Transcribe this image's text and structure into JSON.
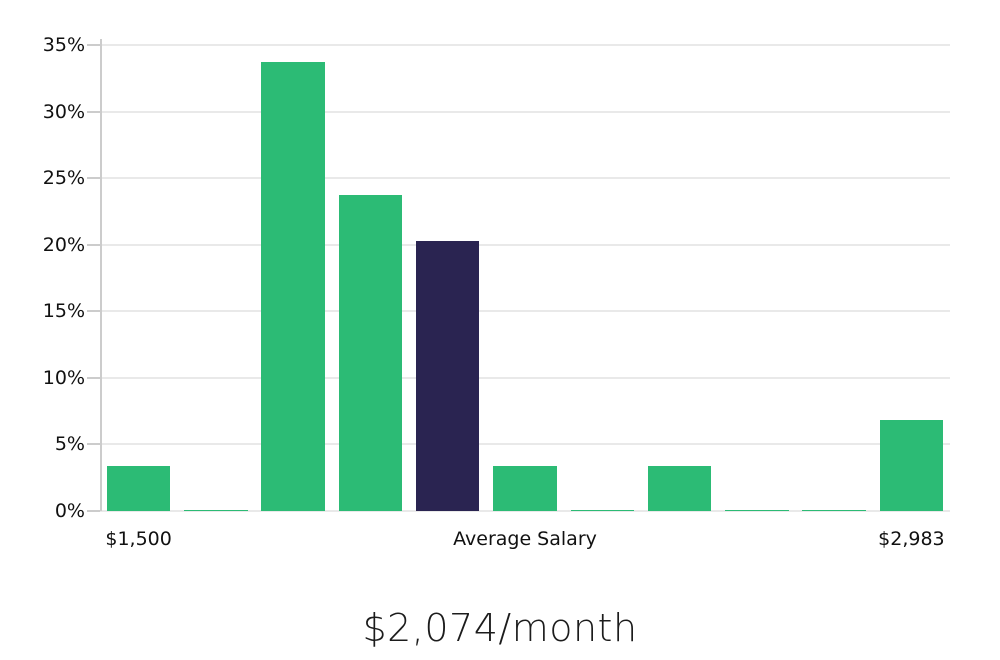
{
  "page": {
    "title": "$2,074/month"
  },
  "chart_data": {
    "type": "bar",
    "title": "$2,074/month",
    "xlabel": "",
    "ylabel": "",
    "ylim": [
      0,
      35
    ],
    "grid": "horizontal",
    "legend": "none",
    "ytick_labels": [
      "0%",
      "5%",
      "10%",
      "15%",
      "20%",
      "25%",
      "30%",
      "35%"
    ],
    "ytick_values": [
      0,
      5,
      10,
      15,
      20,
      25,
      30,
      35
    ],
    "x_axis_labels": {
      "min": "$1,500",
      "center": "Average Salary",
      "max": "$2,983"
    },
    "values": [
      3.4,
      0.1,
      33.7,
      23.7,
      20.3,
      3.4,
      0.1,
      3.4,
      0.1,
      0.1,
      6.8
    ],
    "highlight_index": 4,
    "highlight_meaning": "bin containing the average salary",
    "colors": {
      "bar": "#2cbb75",
      "highlight_bar": "#2a2451",
      "gridline": "#e9e9e9",
      "axis": "#cccccc",
      "tick_text": "#111111",
      "title_text": "#1c1c1c"
    }
  }
}
